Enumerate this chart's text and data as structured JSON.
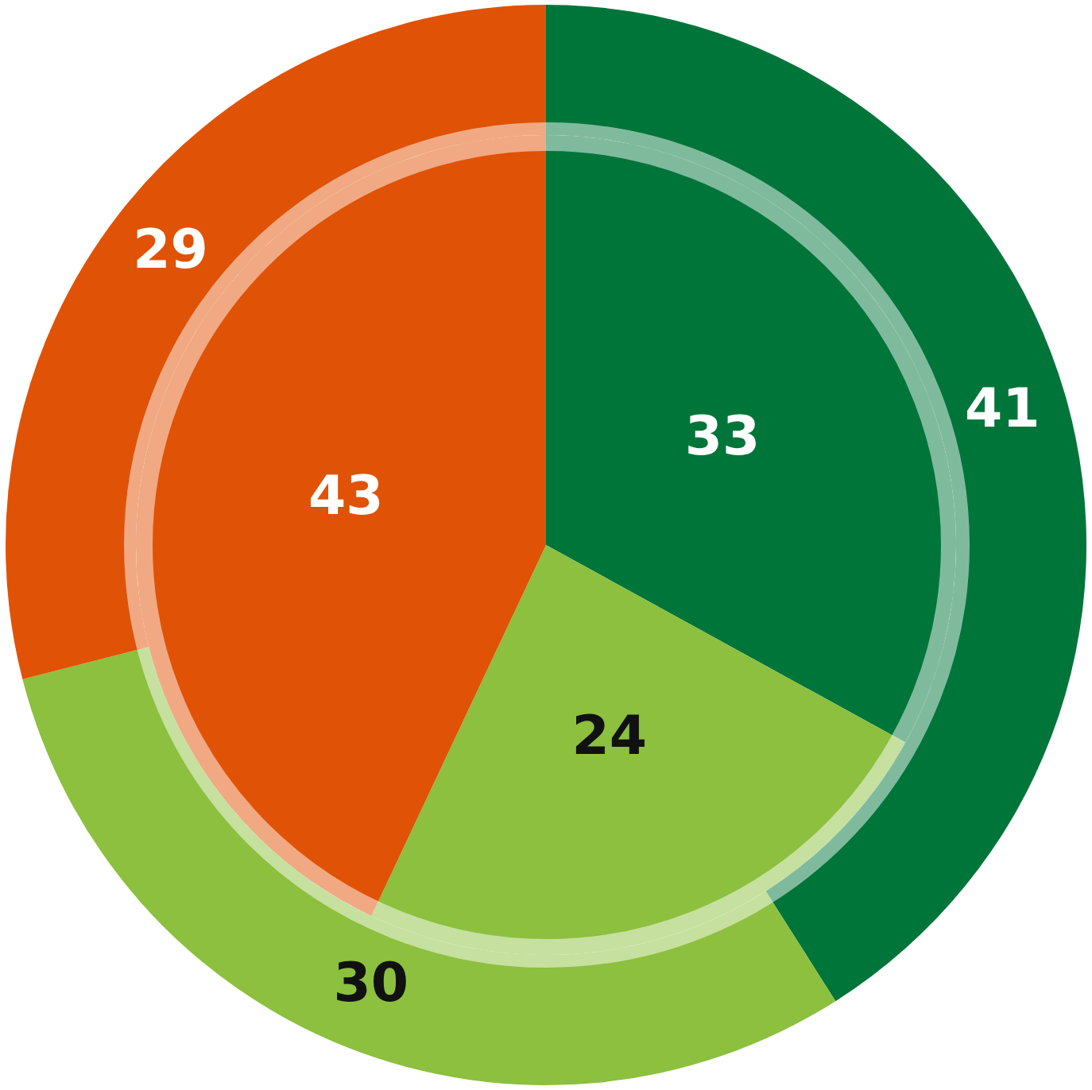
{
  "chart_data": {
    "type": "pie",
    "categories": [
      null,
      null,
      null
    ],
    "data_labels": true,
    "legend": false,
    "series": [
      {
        "values": [
          41,
          30,
          29
        ],
        "colors": [
          "#00753a",
          "#8cc03e",
          "#e05206"
        ]
      },
      {
        "values": [
          33,
          24,
          43
        ],
        "colors": [
          "#00753a",
          "#8cc03e",
          "#e05206"
        ]
      }
    ]
  }
}
